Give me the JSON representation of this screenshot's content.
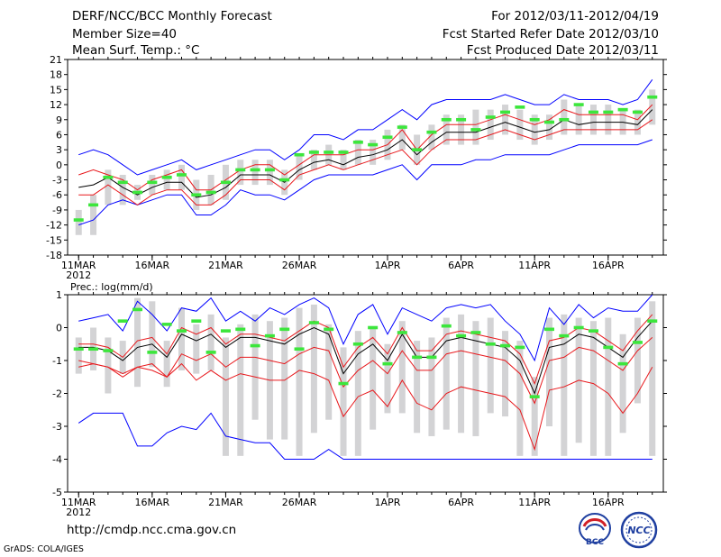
{
  "header": {
    "title": "DERF/NCC/BCC Monthly Forecast",
    "member": "Member Size=40",
    "variable": "Mean Surf. Temp.: °C",
    "period": "For 2012/03/11-2012/04/19",
    "started": "Fcst Started Refer Date 2012/03/10",
    "produced": "Fcst Produced Date 2012/03/11"
  },
  "footer": {
    "url": "http://cmdp.ncc.cma.gov.cn",
    "grads": "GrADS: COLA/IGES",
    "logo_left": "BCC",
    "logo_right": "NCC"
  },
  "colors": {
    "upper_envelope": "#0000ff",
    "lower_envelope": "#0000ff",
    "spread": "#e8181c",
    "mean": "#000000",
    "box": "#d3d3d5",
    "observed": "#3ce63c"
  },
  "chart_data": [
    {
      "type": "line",
      "title": "Mean Surf. Temp.: °C",
      "x_labels": [
        "11MAR",
        "16MAR",
        "21MAR",
        "26MAR",
        "1APR",
        "6APR",
        "11APR",
        "16APR"
      ],
      "x_label_days": [
        0,
        5,
        10,
        15,
        21,
        26,
        31,
        36
      ],
      "year_label": "2012",
      "ylim": [
        -18,
        21
      ],
      "yticks": [
        -18,
        -15,
        -12,
        -9,
        -6,
        -3,
        0,
        3,
        6,
        9,
        12,
        15,
        18,
        21
      ],
      "days": 40,
      "series": [
        {
          "name": "ensemble-max",
          "values": [
            2,
            3,
            2,
            0,
            -2,
            -1,
            0,
            1,
            -1,
            0,
            1,
            2,
            3,
            3,
            1,
            3,
            6,
            6,
            5,
            7,
            7,
            9,
            11,
            9,
            12,
            13,
            13,
            13,
            13,
            14,
            13,
            12,
            12,
            14,
            13,
            13,
            13,
            12,
            13,
            17
          ]
        },
        {
          "name": "upper-spread",
          "values": [
            -2,
            -1,
            -2,
            -3,
            -5,
            -3,
            -2,
            -1,
            -5,
            -5,
            -3,
            -1,
            0,
            0,
            -2,
            0,
            2,
            2,
            2,
            3,
            3,
            4,
            7,
            3,
            6,
            8,
            8,
            8,
            9,
            10,
            9,
            8,
            9,
            11,
            10,
            10,
            10,
            10,
            9,
            12
          ]
        },
        {
          "name": "ensemble-mean",
          "values": [
            -4.5,
            -4,
            -2.5,
            -4.5,
            -6,
            -4.5,
            -3.5,
            -3.5,
            -6.5,
            -6,
            -4.5,
            -2,
            -2,
            -2,
            -3.5,
            -1,
            0.5,
            1,
            0,
            1.5,
            2,
            3,
            5,
            2,
            4.5,
            6.5,
            6.5,
            6.5,
            7.5,
            8.5,
            7.5,
            6.5,
            7,
            9,
            8,
            8.5,
            8.5,
            8.5,
            8,
            11
          ]
        },
        {
          "name": "lower-spread",
          "values": [
            -6,
            -6,
            -4,
            -6,
            -8,
            -6,
            -5,
            -5,
            -8,
            -8,
            -6,
            -3,
            -3,
            -3,
            -5,
            -2,
            -1,
            0,
            -1,
            0,
            1,
            2,
            3,
            0,
            3,
            5,
            5,
            5,
            6,
            7,
            6,
            5,
            6,
            7,
            7,
            7,
            7,
            7,
            7,
            9
          ]
        },
        {
          "name": "ensemble-min",
          "values": [
            -12,
            -11,
            -8,
            -7,
            -8,
            -7,
            -6,
            -6,
            -10,
            -10,
            -8,
            -5,
            -6,
            -6,
            -7,
            -5,
            -3,
            -2,
            -2,
            -2,
            -2,
            -1,
            0,
            -3,
            0,
            0,
            0,
            1,
            1,
            2,
            2,
            2,
            2,
            3,
            4,
            4,
            4,
            4,
            4,
            5
          ]
        },
        {
          "name": "box-top",
          "values": [
            -9,
            -6,
            -1,
            -2,
            -4,
            -2,
            -1,
            0,
            -3,
            -2,
            0,
            1,
            1,
            1,
            -1,
            2,
            3,
            4,
            3,
            5,
            5,
            7,
            8,
            6,
            8,
            10,
            10,
            11,
            11,
            12,
            11,
            10,
            10,
            13,
            12,
            12,
            12,
            11,
            11,
            15
          ]
        },
        {
          "name": "box-bottom",
          "values": [
            -14,
            -14,
            -8,
            -8,
            -7,
            -6,
            -5,
            -5,
            -9,
            -8,
            -7,
            -4,
            -4,
            -4,
            -6,
            -3,
            -1,
            0,
            -1,
            0,
            0,
            1,
            3,
            0,
            3,
            4,
            4,
            4,
            5,
            6,
            5,
            4,
            5,
            6,
            6,
            6,
            6,
            6,
            6,
            8
          ]
        },
        {
          "name": "observed",
          "values": [
            -11,
            -8,
            -2.5,
            -3.5,
            -5.5,
            -3.5,
            -2.5,
            -2,
            -6,
            -5.5,
            -3.5,
            -1,
            -1,
            -1,
            -3,
            2,
            2.5,
            2.5,
            2.5,
            4.5,
            4,
            5.5,
            7.5,
            3,
            6.5,
            9,
            9,
            7,
            9.5,
            10.5,
            11.5,
            9,
            8.5,
            9,
            12,
            10.5,
            10.5,
            11,
            10.5,
            13.5
          ]
        }
      ]
    },
    {
      "type": "line",
      "title": "Prec.: log(mm/d)",
      "x_labels": [
        "11MAR",
        "16MAR",
        "21MAR",
        "26MAR",
        "1APR",
        "6APR",
        "11APR",
        "16APR"
      ],
      "x_label_days": [
        0,
        5,
        10,
        15,
        21,
        26,
        31,
        36
      ],
      "year_label": "2012",
      "ylim": [
        -5,
        1
      ],
      "yticks": [
        -5,
        -4,
        -3,
        -2,
        -1,
        0,
        1
      ],
      "days": 40,
      "series": [
        {
          "name": "ensemble-max",
          "values": [
            0.2,
            0.3,
            0.4,
            -0.1,
            0.8,
            0.4,
            -0.1,
            0.6,
            0.5,
            0.9,
            0.2,
            0.5,
            0.2,
            0.6,
            0.4,
            0.7,
            0.9,
            0.6,
            -0.5,
            0.4,
            0.7,
            -0.2,
            0.6,
            0.4,
            0.2,
            0.6,
            0.7,
            0.6,
            0.7,
            0.2,
            -0.2,
            -1.0,
            0.6,
            0.1,
            0.7,
            0.3,
            0.6,
            0.5,
            0.5,
            1.0
          ]
        },
        {
          "name": "upper-spread",
          "values": [
            -0.5,
            -0.5,
            -0.6,
            -0.9,
            -0.4,
            -0.3,
            -0.8,
            0.0,
            -0.2,
            0.0,
            -0.5,
            -0.2,
            -0.2,
            -0.3,
            -0.4,
            -0.1,
            0.2,
            0.0,
            -1.2,
            -0.6,
            -0.3,
            -0.8,
            0.0,
            -0.7,
            -0.7,
            -0.2,
            -0.1,
            -0.2,
            -0.3,
            -0.4,
            -0.8,
            -1.7,
            -0.4,
            -0.3,
            0.0,
            -0.1,
            -0.4,
            -0.7,
            -0.1,
            0.4
          ]
        },
        {
          "name": "ensemble-mean",
          "values": [
            -0.6,
            -0.6,
            -0.7,
            -1.0,
            -0.6,
            -0.5,
            -0.9,
            -0.2,
            -0.4,
            -0.2,
            -0.6,
            -0.3,
            -0.3,
            -0.4,
            -0.5,
            -0.2,
            0.0,
            -0.2,
            -1.4,
            -0.8,
            -0.5,
            -1.0,
            -0.2,
            -0.9,
            -0.9,
            -0.4,
            -0.3,
            -0.4,
            -0.5,
            -0.6,
            -1.0,
            -2.0,
            -0.6,
            -0.5,
            -0.2,
            -0.3,
            -0.6,
            -0.9,
            -0.3,
            0.2
          ]
        },
        {
          "name": "lower-spread",
          "values": [
            -1.2,
            -1.1,
            -1.2,
            -1.5,
            -1.2,
            -1.1,
            -1.5,
            -0.8,
            -1.0,
            -0.8,
            -1.2,
            -0.9,
            -0.9,
            -1.0,
            -1.1,
            -0.8,
            -0.6,
            -0.7,
            -1.8,
            -1.3,
            -1.0,
            -1.4,
            -0.7,
            -1.3,
            -1.3,
            -0.8,
            -0.7,
            -0.8,
            -0.9,
            -1.0,
            -1.4,
            -2.3,
            -1.0,
            -0.9,
            -0.6,
            -0.7,
            -1.0,
            -1.3,
            -0.7,
            -0.3
          ]
        },
        {
          "name": "lower-bound",
          "values": [
            -1.0,
            -1.1,
            -1.2,
            -1.4,
            -1.2,
            -1.3,
            -1.5,
            -1.1,
            -1.6,
            -1.3,
            -1.6,
            -1.4,
            -1.5,
            -1.6,
            -1.6,
            -1.3,
            -1.4,
            -1.6,
            -2.7,
            -2.1,
            -1.9,
            -2.4,
            -1.6,
            -2.3,
            -2.5,
            -2.0,
            -1.8,
            -1.9,
            -2.0,
            -2.1,
            -2.5,
            -3.7,
            -1.9,
            -1.8,
            -1.6,
            -1.7,
            -2.0,
            -2.6,
            -2.0,
            -1.2
          ]
        },
        {
          "name": "ensemble-min",
          "values": [
            -2.9,
            -2.6,
            -2.6,
            -2.6,
            -3.6,
            -3.6,
            -3.2,
            -3.0,
            -3.1,
            -2.6,
            -3.3,
            -3.4,
            -3.5,
            -3.5,
            -4.0,
            -4.0,
            -4.0,
            -3.7,
            -4.0,
            -4.0,
            -4.0,
            -4.0,
            -4.0,
            -4.0,
            -4.0,
            -4.0,
            -4.0,
            -4.0,
            -4.0,
            -4.0,
            -4.0,
            -4.0,
            -4.0,
            -4.0,
            -4.0,
            -4.0,
            -4.0,
            -4.0,
            -4.0,
            -4.0
          ]
        },
        {
          "name": "box-top",
          "values": [
            -0.3,
            0.0,
            -0.3,
            -0.4,
            0.9,
            0.8,
            -0.4,
            0.6,
            0.1,
            0.4,
            -0.3,
            0.1,
            0.4,
            0.2,
            0.3,
            0.6,
            0.7,
            0.1,
            -0.6,
            -0.1,
            0.0,
            -0.5,
            0.2,
            -0.4,
            -0.3,
            0.3,
            0.4,
            0.2,
            0.3,
            -0.1,
            -0.4,
            -1.5,
            0.3,
            0.4,
            0.3,
            0.2,
            0.3,
            -0.2,
            0.3,
            0.8
          ]
        },
        {
          "name": "box-bottom",
          "values": [
            -1.4,
            -1.3,
            -2.0,
            -1.4,
            -1.8,
            -1.2,
            -1.8,
            -1.3,
            -1.4,
            -1.3,
            -3.9,
            -3.9,
            -2.8,
            -3.4,
            -3.4,
            -3.9,
            -3.2,
            -2.8,
            -3.9,
            -3.9,
            -3.1,
            -2.6,
            -2.6,
            -3.2,
            -3.3,
            -3.1,
            -3.2,
            -3.3,
            -2.6,
            -2.7,
            -3.9,
            -3.9,
            -3.0,
            -3.9,
            -3.5,
            -3.9,
            -3.9,
            -3.2,
            -2.3,
            -3.9
          ]
        },
        {
          "name": "observed",
          "values": [
            -0.65,
            -0.65,
            -0.7,
            0.2,
            0.55,
            -0.75,
            0.1,
            -0.1,
            0.2,
            -0.75,
            -0.1,
            -0.05,
            -0.55,
            -0.25,
            -0.05,
            -0.65,
            0.15,
            -0.05,
            -1.7,
            -0.5,
            0.0,
            -1.1,
            -0.15,
            -0.9,
            -0.9,
            0.05,
            -0.25,
            -0.15,
            -0.5,
            -0.55,
            -0.6,
            -2.1,
            -0.05,
            -0.25,
            0.0,
            -0.1,
            -0.6,
            -1.1,
            -0.45,
            0.2
          ]
        }
      ]
    }
  ]
}
